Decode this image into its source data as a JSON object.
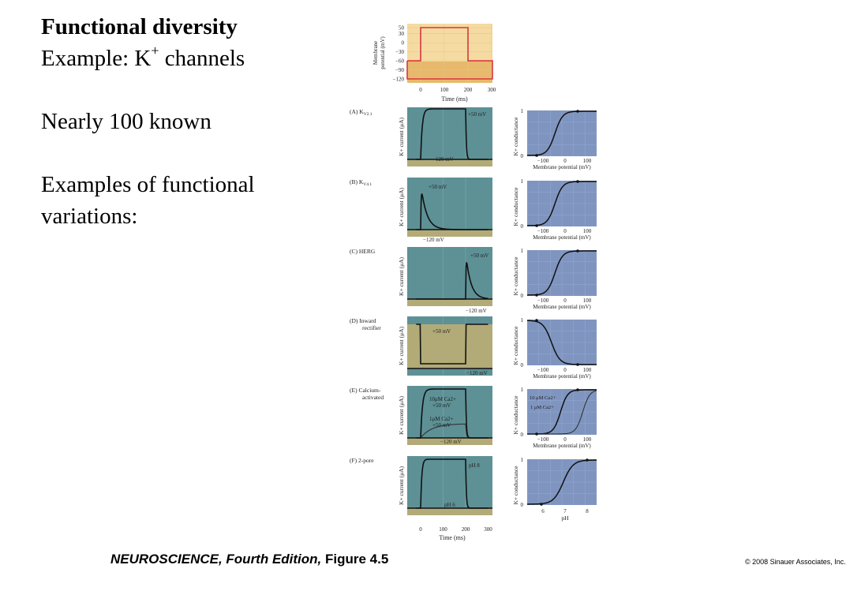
{
  "slide": {
    "title": "Functional diversity",
    "example_prefix": "Example:  K",
    "example_sup": "+",
    "example_suffix": " channels",
    "line2": "Nearly 100 known",
    "line3a": "Examples of functional",
    "line3b": "variations:"
  },
  "figure": {
    "protocol": {
      "ylabel_line1": "Membrane",
      "ylabel_line2": "potential (mV)",
      "yticks": [
        "50",
        "30",
        "0",
        "−30",
        "−60",
        "−90",
        "−120"
      ],
      "xticks": [
        "0",
        "100",
        "200",
        "300"
      ],
      "xlabel": "Time (ms)",
      "holding_mV": -60,
      "pulse_mV": 50,
      "pulse_start_ms": 0,
      "pulse_end_ms": 200
    },
    "current_ylabel": "K+ current (μA)",
    "conductance_ylabel": "K+ conductance",
    "conductance_xlabel": "Membrane potential (mV)",
    "conductance_xticks": [
      "−100",
      "0",
      "100"
    ],
    "conductance_yticks": [
      "1",
      "0"
    ],
    "time_xticks": [
      "0",
      "100",
      "200",
      "300"
    ],
    "time_xlabel": "Time (ms)",
    "ph_xticks": [
      "6",
      "7",
      "8"
    ],
    "ph_xlabel": "pH",
    "panels": [
      {
        "letter": "(A)",
        "name": "K",
        "sub": "V2.1",
        "trace1": "+50 mV",
        "trace2": "−120 mV"
      },
      {
        "letter": "(B)",
        "name": "K",
        "sub": "V4.1",
        "trace1": "+50 mV",
        "trace2": "−120 mV"
      },
      {
        "letter": "(C)",
        "name": "HERG",
        "sub": "",
        "trace1": "+50 mV",
        "trace2": "−120 mV"
      },
      {
        "letter": "(D)",
        "name": "Inward",
        "name2": "rectifier",
        "trace1": "+50 mV",
        "trace2": "−120 mV"
      },
      {
        "letter": "(E)",
        "name": "Calcium-",
        "name2": "activated",
        "trace1a": "10μM Ca2+",
        "trace1b": "+50 mV",
        "trace3a": "1μM Ca2+",
        "trace3b": "+50 mV",
        "trace2": "−120 mV",
        "cond1": "10 μM Ca2+",
        "cond2": "1 μM Ca2+"
      },
      {
        "letter": "(F)",
        "name": "2-pore",
        "trace1": "pH 8",
        "trace2": "pH 6"
      }
    ]
  },
  "footer": {
    "book": "NEUROSCIENCE,",
    "edition": " Fourth Edition,",
    "figure": " Figure 4.5"
  },
  "copyright": "© 2008 Sinauer Associates, Inc.",
  "colors": {
    "teal": "#5d9196",
    "olive": "#b2ab77",
    "blue": "#7f95c0",
    "protocol_bg": "#f5dba1",
    "protocol_band": "#e8b86c",
    "red": "#d9363e"
  }
}
